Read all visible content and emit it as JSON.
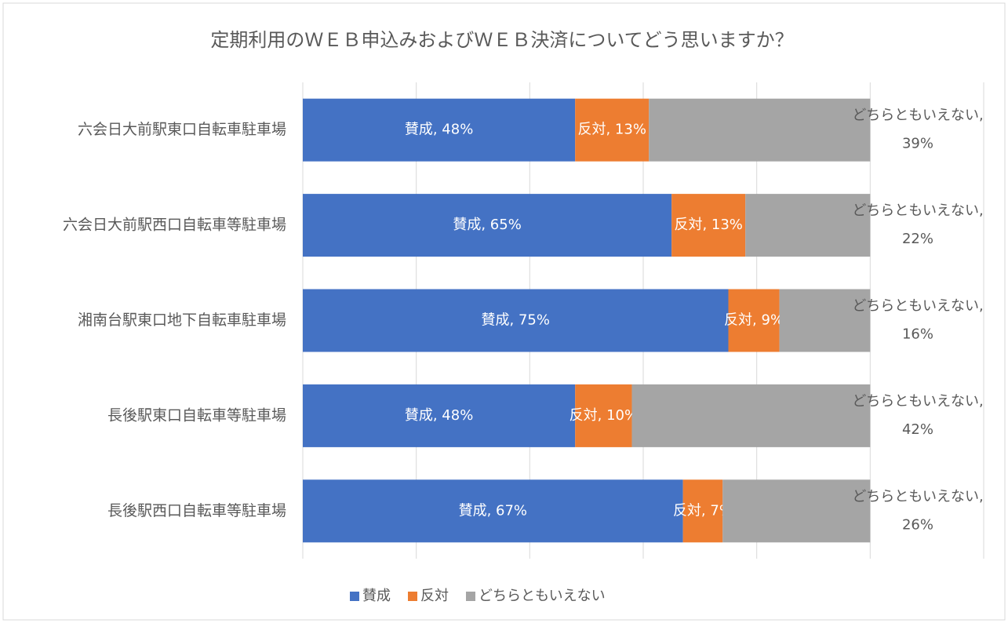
{
  "chart_data": {
    "type": "stacked-barh",
    "title": "定期利用のＷＥＢ申込みおよびＷＥＢ決済についてどう思いますか？",
    "categories": [
      "六会日大前駅東口自転車駐車場",
      "六会日大前駅西口自転車等駐車場",
      "湘南台駅東口地下自転車駐車場",
      "長後駅東口自転車等駐車場",
      "長後駅西口自転車等駐車場"
    ],
    "series": [
      {
        "name": "賛成",
        "color": "#4472c4",
        "values": [
          48,
          65,
          75,
          48,
          67
        ],
        "value_labels": [
          "賛成, 48%",
          "賛成, 65%",
          "賛成, 75%",
          "賛成, 48%",
          "賛成, 67%"
        ]
      },
      {
        "name": "反対",
        "color": "#ed7d31",
        "values": [
          13,
          13,
          9,
          10,
          7
        ],
        "value_labels": [
          "反対, 13%",
          "反対, 13%",
          "反対, 9%",
          "反対, 10%",
          "反対, 7%"
        ]
      },
      {
        "name": "どちらともいえない",
        "color": "#a5a5a5",
        "values": [
          39,
          22,
          16,
          42,
          26
        ],
        "value_labels": [
          "どちらともいえない, 39%",
          "どちらともいえない, 22%",
          "どちらともいえない, 16%",
          "どちらともいえない, 42%",
          "どちらともいえない, 26%"
        ]
      }
    ],
    "xlim": [
      0,
      120
    ],
    "xticks": [
      0,
      20,
      40,
      60,
      80,
      100,
      120
    ],
    "xtick_labels": false,
    "grid": true,
    "legend": "bottom"
  }
}
